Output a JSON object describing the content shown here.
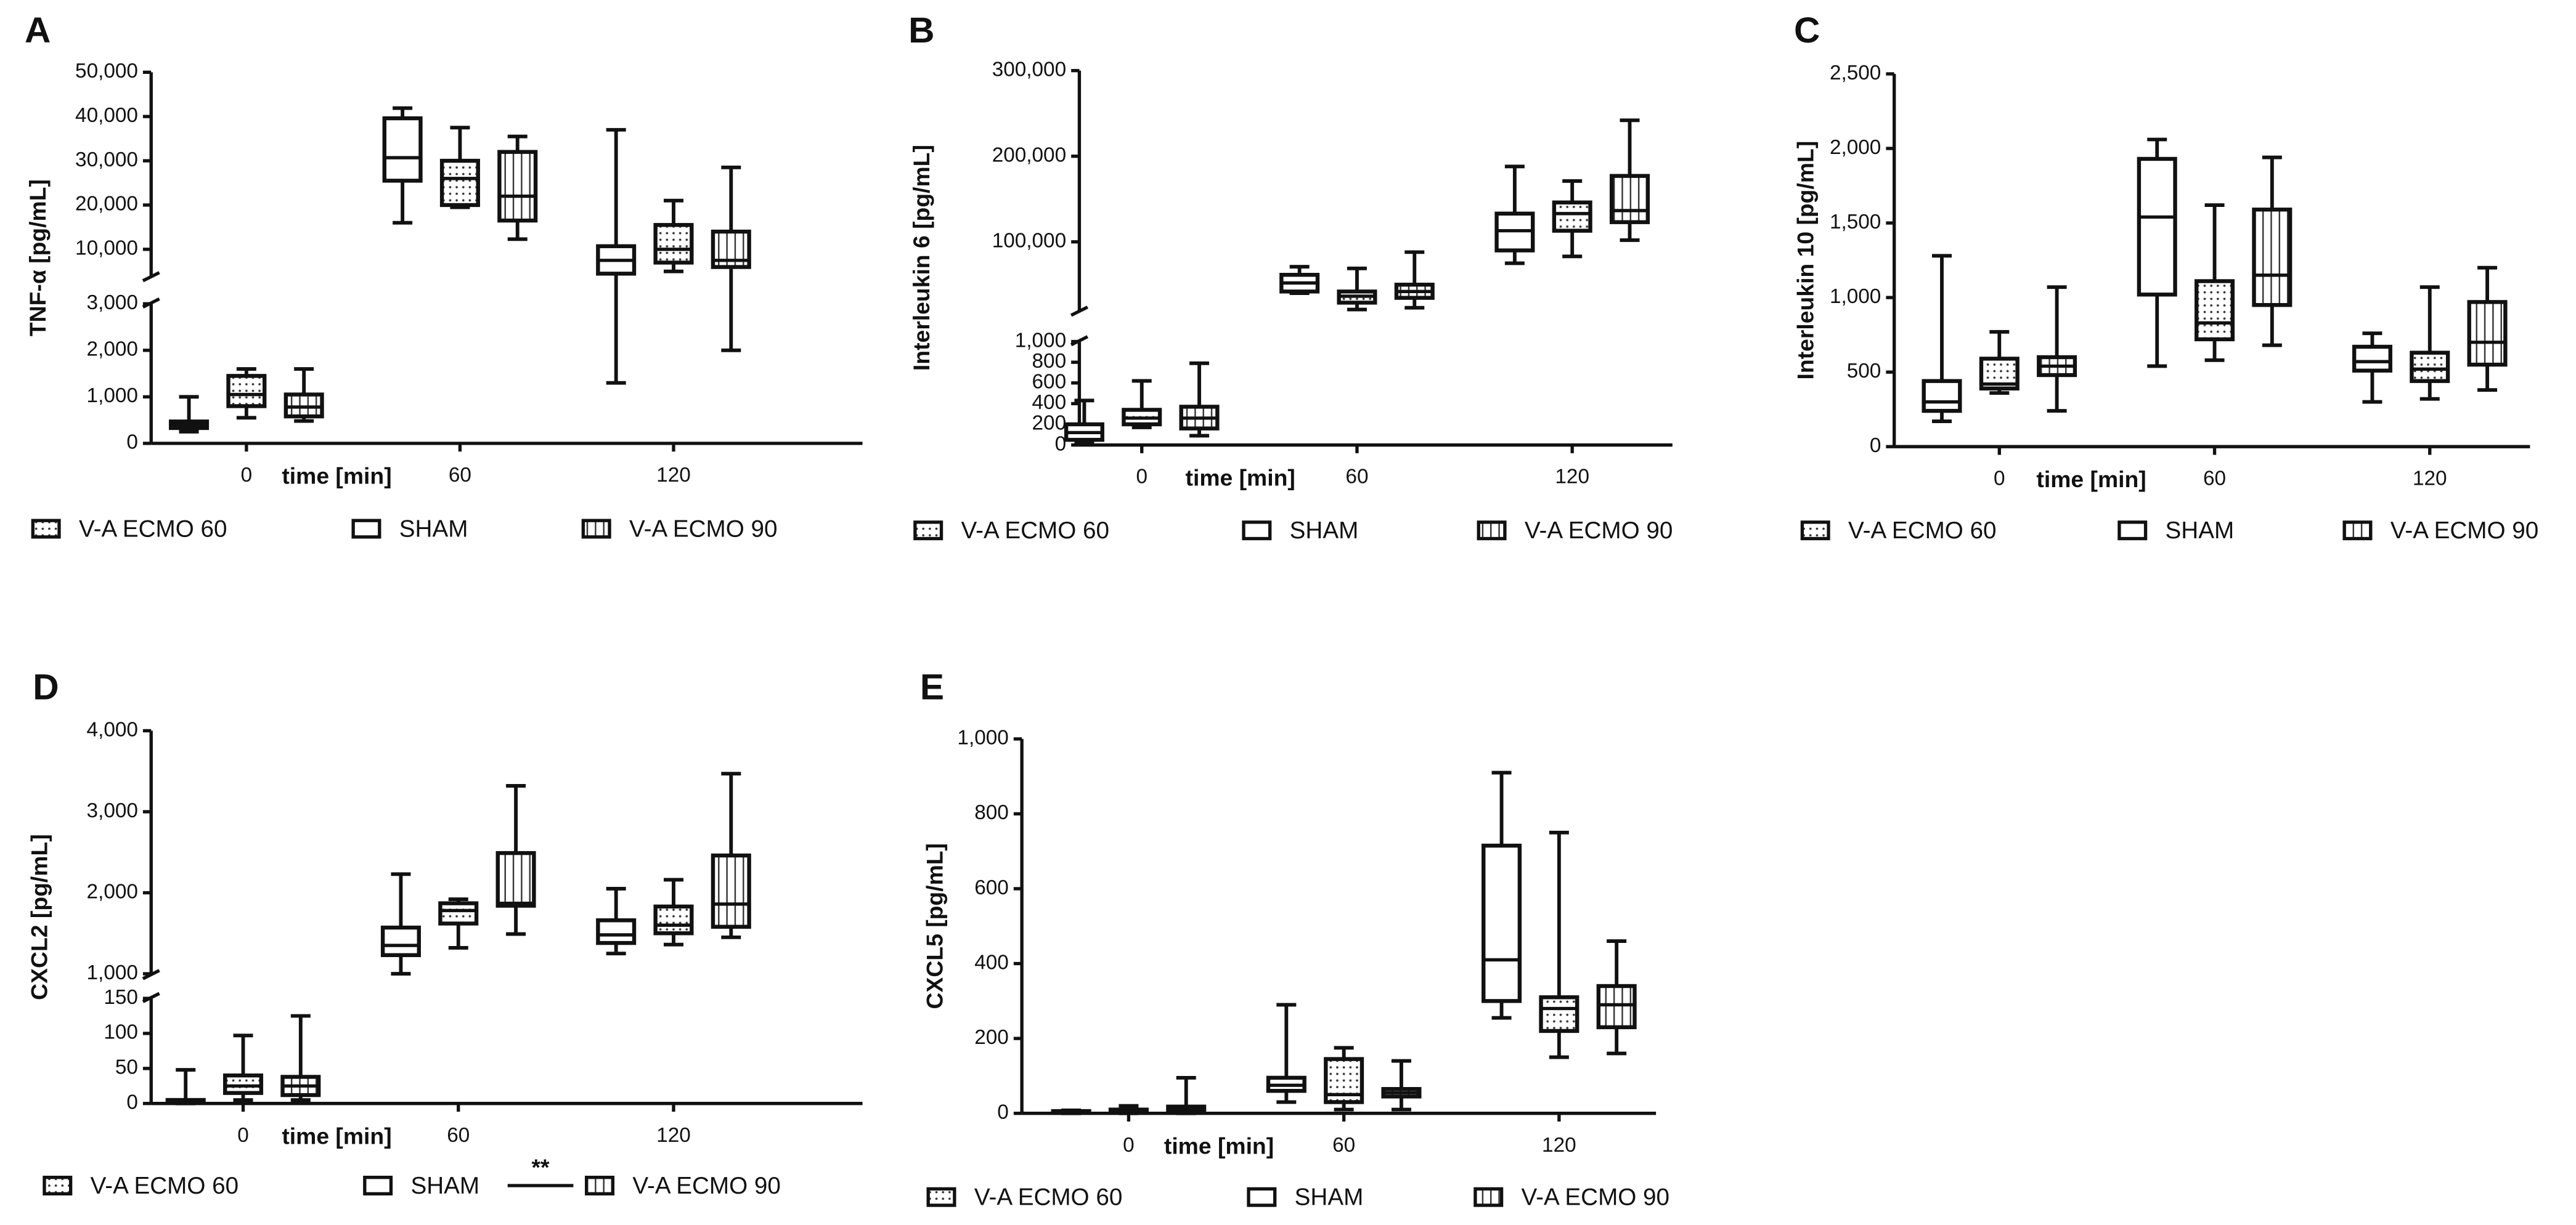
{
  "chart_data": [
    {
      "type": "box",
      "panel": "A",
      "ylabel": "TNF-α [pg/mL]",
      "xlabel": "time [min]",
      "categories": [
        "0",
        "60",
        "120"
      ],
      "ysegments": [
        {
          "ylim": [
            0,
            3000
          ],
          "yticks": [
            0,
            {
              "value": 1000,
              "label": "1,000"
            },
            {
              "value": 2000,
              "label": "2,000"
            },
            {
              "value": 3000,
              "label": "3,000"
            }
          ]
        },
        {
          "ylim": [
            4000,
            50000
          ],
          "yticks": [
            {
              "value": 10000,
              "label": "10,000"
            },
            {
              "value": 20000,
              "label": "20,000"
            },
            {
              "value": 30000,
              "label": "30,000"
            },
            {
              "value": 40000,
              "label": "40,000"
            },
            {
              "value": 50000,
              "label": "50,000"
            }
          ]
        }
      ],
      "series": [
        {
          "name": "V-A ECMO 60",
          "pattern": "dots",
          "values": [
            {
              "min": 550,
              "q1": 800,
              "median": 1050,
              "q3": 1450,
              "max": 1600
            },
            {
              "min": 19500,
              "q1": 20000,
              "median": 26000,
              "q3": 30000,
              "max": 37500
            },
            {
              "min": 5000,
              "q1": 7000,
              "median": 10000,
              "q3": 15500,
              "max": 21000
            }
          ]
        },
        {
          "name": "SHAM",
          "pattern": "none",
          "values": [
            {
              "min": 250,
              "q1": 330,
              "median": 400,
              "q3": 470,
              "max": 1000
            },
            {
              "min": 16000,
              "q1": 25500,
              "median": 30700,
              "q3": 39600,
              "max": 41900
            },
            {
              "min": 1300,
              "q1": 4500,
              "median": 7500,
              "q3": 10700,
              "max": 37000
            }
          ]
        },
        {
          "name": "V-A ECMO 90",
          "pattern": "vertical",
          "values": [
            {
              "min": 480,
              "q1": 580,
              "median": 780,
              "q3": 1050,
              "max": 1600
            },
            {
              "min": 12300,
              "q1": 16500,
              "median": 22000,
              "q3": 32000,
              "max": 35500
            },
            {
              "min": 2000,
              "q1": 6000,
              "median": 7500,
              "q3": 14000,
              "max": 28500
            }
          ]
        }
      ]
    },
    {
      "type": "box",
      "panel": "B",
      "ylabel": "Interleukin 6 [pg/mL]",
      "xlabel": "time [min]",
      "categories": [
        "0",
        "60",
        "120"
      ],
      "ysegments": [
        {
          "ylim": [
            0,
            1000
          ],
          "yticks": [
            0,
            200,
            400,
            600,
            800,
            {
              "value": 1000,
              "label": "1,000"
            }
          ]
        },
        {
          "ylim": [
            20000,
            300000
          ],
          "yticks": [
            {
              "value": 100000,
              "label": "100,000"
            },
            {
              "value": 200000,
              "label": "200,000"
            },
            {
              "value": 300000,
              "label": "300,000"
            }
          ]
        }
      ],
      "series": [
        {
          "name": "V-A ECMO 60",
          "pattern": "dots",
          "values": [
            {
              "min": 170,
              "q1": 200,
              "median": 260,
              "q3": 340,
              "max": 620
            },
            {
              "min": 21000,
              "q1": 29000,
              "median": 36500,
              "q3": 42000,
              "max": 69000
            },
            {
              "min": 83000,
              "q1": 113000,
              "median": 133000,
              "q3": 146000,
              "max": 171000
            }
          ]
        },
        {
          "name": "SHAM",
          "pattern": "none",
          "values": [
            {
              "min": 20,
              "q1": 50,
              "median": 120,
              "q3": 200,
              "max": 430
            },
            {
              "min": 40000,
              "q1": 42000,
              "median": 52000,
              "q3": 61500,
              "max": 71000
            },
            {
              "min": 75000,
              "q1": 90000,
              "median": 113000,
              "q3": 133000,
              "max": 188000
            }
          ]
        },
        {
          "name": "V-A ECMO 90",
          "pattern": "vertical",
          "values": [
            {
              "min": 90,
              "q1": 160,
              "median": 260,
              "q3": 370,
              "max": 790
            },
            {
              "min": 23000,
              "q1": 34600,
              "median": 42000,
              "q3": 50000,
              "max": 88000
            },
            {
              "min": 102000,
              "q1": 123000,
              "median": 136500,
              "q3": 177000,
              "max": 242000
            }
          ]
        }
      ]
    },
    {
      "type": "box",
      "panel": "C",
      "ylabel": "Interleukin 10 [pg/mL]",
      "xlabel": "time [min]",
      "categories": [
        "0",
        "60",
        "120"
      ],
      "ylim": [
        0,
        2500
      ],
      "yticks": [
        0,
        500,
        {
          "value": 1000,
          "label": "1,000"
        },
        {
          "value": 1500,
          "label": "1,500"
        },
        {
          "value": 2000,
          "label": "2,000"
        },
        {
          "value": 2500,
          "label": "2,500"
        }
      ],
      "series": [
        {
          "name": "V-A ECMO 60",
          "pattern": "dots",
          "values": [
            {
              "min": 360,
              "q1": 390,
              "median": 420,
              "q3": 590,
              "max": 770
            },
            {
              "min": 580,
              "q1": 720,
              "median": 830,
              "q3": 1110,
              "max": 1620
            },
            {
              "min": 320,
              "q1": 440,
              "median": 520,
              "q3": 630,
              "max": 1070
            }
          ]
        },
        {
          "name": "SHAM",
          "pattern": "none",
          "values": [
            {
              "min": 170,
              "q1": 240,
              "median": 300,
              "q3": 440,
              "max": 1280
            },
            {
              "min": 540,
              "q1": 1020,
              "median": 1540,
              "q3": 1930,
              "max": 2060
            },
            {
              "min": 300,
              "q1": 510,
              "median": 570,
              "q3": 670,
              "max": 760
            }
          ]
        },
        {
          "name": "V-A ECMO 90",
          "pattern": "vertical",
          "values": [
            {
              "min": 240,
              "q1": 480,
              "median": 540,
              "q3": 600,
              "max": 1070
            },
            {
              "min": 680,
              "q1": 950,
              "median": 1150,
              "q3": 1590,
              "max": 1940
            },
            {
              "min": 380,
              "q1": 550,
              "median": 700,
              "q3": 970,
              "max": 1200
            }
          ]
        }
      ]
    },
    {
      "type": "box",
      "panel": "D",
      "ylabel": "CXCL2 [pg/mL]",
      "xlabel": "time [min]",
      "categories": [
        "0",
        "60",
        "120"
      ],
      "annotation": "**",
      "ysegments": [
        {
          "ylim": [
            0,
            150
          ],
          "yticks": [
            0,
            50,
            100,
            150
          ]
        },
        {
          "ylim": [
            1000,
            4000
          ],
          "yticks": [
            {
              "value": 1000,
              "label": "1,000"
            },
            {
              "value": 2000,
              "label": "2,000"
            },
            {
              "value": 3000,
              "label": "3,000"
            },
            {
              "value": 4000,
              "label": "4,000"
            }
          ]
        }
      ],
      "series": [
        {
          "name": "V-A ECMO 60",
          "pattern": "dots",
          "values": [
            {
              "min": 5,
              "q1": 15,
              "median": 25,
              "q3": 40,
              "max": 97
            },
            {
              "min": 1320,
              "q1": 1620,
              "median": 1780,
              "q3": 1870,
              "max": 1920
            },
            {
              "min": 1360,
              "q1": 1500,
              "median": 1600,
              "q3": 1830,
              "max": 2160
            }
          ]
        },
        {
          "name": "SHAM",
          "pattern": "none",
          "values": [
            {
              "min": 0,
              "q1": 1,
              "median": 3,
              "q3": 5,
              "max": 48
            },
            {
              "min": 1000,
              "q1": 1230,
              "median": 1350,
              "q3": 1570,
              "max": 2230
            },
            {
              "min": 1250,
              "q1": 1380,
              "median": 1480,
              "q3": 1660,
              "max": 2050
            }
          ]
        },
        {
          "name": "V-A ECMO 90",
          "pattern": "vertical",
          "values": [
            {
              "min": 5,
              "q1": 12,
              "median": 25,
              "q3": 38,
              "max": 125
            },
            {
              "min": 1490,
              "q1": 1840,
              "median": 1870,
              "q3": 2490,
              "max": 3320
            },
            {
              "min": 1450,
              "q1": 1580,
              "median": 1860,
              "q3": 2460,
              "max": 3470
            }
          ]
        }
      ]
    },
    {
      "type": "box",
      "panel": "E",
      "ylabel": "CXCL5 [pg/mL]",
      "xlabel": "time [min]",
      "categories": [
        "0",
        "60",
        "120"
      ],
      "ylim": [
        0,
        1000
      ],
      "yticks": [
        0,
        200,
        400,
        600,
        800,
        {
          "value": 1000,
          "label": "1,000"
        }
      ],
      "series": [
        {
          "name": "V-A ECMO 60",
          "pattern": "dots",
          "values": [
            {
              "min": 0,
              "q1": 3,
              "median": 6,
              "q3": 10,
              "max": 20
            },
            {
              "min": 10,
              "q1": 30,
              "median": 50,
              "q3": 145,
              "max": 175
            },
            {
              "min": 150,
              "q1": 220,
              "median": 280,
              "q3": 310,
              "max": 750
            }
          ]
        },
        {
          "name": "SHAM",
          "pattern": "none",
          "values": [
            {
              "min": 0,
              "q1": 2,
              "median": 4,
              "q3": 6,
              "max": 8
            },
            {
              "min": 30,
              "q1": 60,
              "median": 75,
              "q3": 95,
              "max": 290
            },
            {
              "min": 255,
              "q1": 300,
              "median": 410,
              "q3": 715,
              "max": 910
            }
          ]
        },
        {
          "name": "V-A ECMO 90",
          "pattern": "vertical",
          "values": [
            {
              "min": 0,
              "q1": 5,
              "median": 12,
              "q3": 18,
              "max": 95
            },
            {
              "min": 10,
              "q1": 45,
              "median": 55,
              "q3": 65,
              "max": 140
            },
            {
              "min": 160,
              "q1": 230,
              "median": 290,
              "q3": 340,
              "max": 460
            }
          ]
        }
      ]
    }
  ]
}
